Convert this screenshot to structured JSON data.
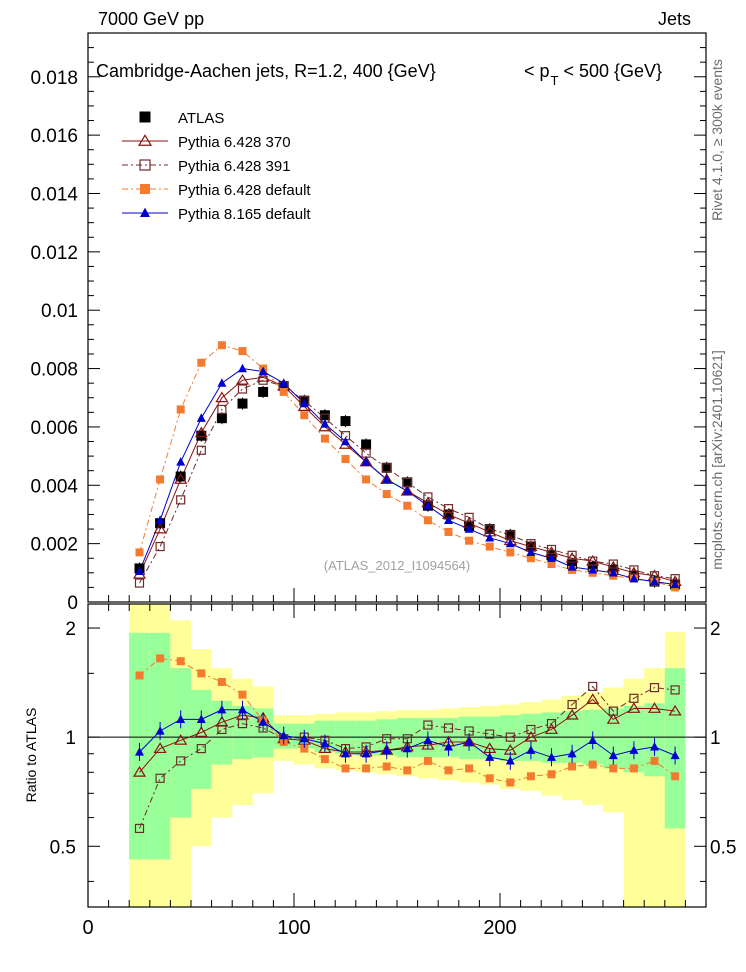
{
  "header": {
    "left": "7000 GeV pp",
    "right": "Jets"
  },
  "side_labels": {
    "rivet": "Rivet 4.1.0, ≥ 300k events",
    "mcplots": "mcplots.cern.ch [arXiv:2401.10621]"
  },
  "chart_data": {
    "type": "line",
    "title": "Cambridge-Aachen jets, R=1.2, 400 {GeV}    < p_T < 500 {GeV}",
    "title_main": "Cambridge-Aachen jets, R=1.2, 400 {GeV}",
    "title_cut_prefix": "< p",
    "title_cut_sub": "T",
    "title_cut_suffix": "< 500 {GeV}",
    "watermark": "(ATLAS_2012_I1094564)",
    "xlabel": "",
    "ylabel": "",
    "xlim": [
      0,
      300
    ],
    "ylim": [
      0,
      0.0195
    ],
    "x_ticks": [
      "0",
      "100",
      "200"
    ],
    "y_ticks": [
      "0",
      "0.002",
      "0.004",
      "0.006",
      "0.008",
      "0.01",
      "0.012",
      "0.014",
      "0.016",
      "0.018"
    ],
    "x": [
      25,
      35,
      45,
      55,
      65,
      75,
      85,
      95,
      105,
      115,
      125,
      135,
      145,
      155,
      165,
      175,
      185,
      195,
      205,
      215,
      225,
      235,
      245,
      255,
      265,
      275,
      285
    ],
    "series": [
      {
        "name": "ATLAS",
        "color": "#000000",
        "marker": "square-filled",
        "values": [
          0.00115,
          0.0027,
          0.0043,
          0.0057,
          0.0063,
          0.0068,
          0.0072,
          0.0074,
          0.0069,
          0.0064,
          0.0062,
          0.0054,
          0.0046,
          0.0041,
          0.0033,
          0.003,
          0.0026,
          0.0025,
          0.0023,
          0.0019,
          0.0016,
          0.0013,
          0.0012,
          0.0011,
          0.0009,
          0.0007,
          0.0006
        ]
      },
      {
        "name": "Pythia 6.428 370",
        "color": "#8b1010",
        "marker": "triangle-open",
        "dash": "",
        "values": [
          0.00095,
          0.0025,
          0.0042,
          0.0058,
          0.007,
          0.0076,
          0.0077,
          0.0074,
          0.0067,
          0.006,
          0.0054,
          0.0048,
          0.0042,
          0.0038,
          0.0034,
          0.003,
          0.0027,
          0.0024,
          0.0021,
          0.0019,
          0.0017,
          0.0015,
          0.0014,
          0.0012,
          0.001,
          0.0009,
          0.0007
        ]
      },
      {
        "name": "Pythia 6.428 391",
        "color": "#6e2a2a",
        "marker": "square-open",
        "dash": "6 3 2 3",
        "values": [
          0.00065,
          0.0019,
          0.0035,
          0.0052,
          0.0066,
          0.0073,
          0.0076,
          0.0074,
          0.0069,
          0.0063,
          0.0057,
          0.0051,
          0.0046,
          0.0041,
          0.0036,
          0.0032,
          0.0029,
          0.0025,
          0.0023,
          0.002,
          0.0018,
          0.0016,
          0.0014,
          0.0013,
          0.0011,
          0.0009,
          0.0008
        ]
      },
      {
        "name": "Pythia 6.428 default",
        "color": "#f47a30",
        "marker": "square-filled",
        "dash": "6 3 2 3",
        "values": [
          0.0017,
          0.0042,
          0.0066,
          0.0082,
          0.0088,
          0.0086,
          0.008,
          0.0072,
          0.0064,
          0.0056,
          0.0049,
          0.0042,
          0.0037,
          0.0033,
          0.0028,
          0.0024,
          0.0021,
          0.0019,
          0.0017,
          0.0015,
          0.0013,
          0.0011,
          0.001,
          0.0009,
          0.0008,
          0.0007,
          0.0005
        ]
      },
      {
        "name": "Pythia 8.165 default",
        "color": "#0000d0",
        "marker": "triangle-filled",
        "dash": "",
        "values": [
          0.00105,
          0.0028,
          0.0048,
          0.0063,
          0.0075,
          0.008,
          0.0079,
          0.0075,
          0.0068,
          0.0061,
          0.0055,
          0.0048,
          0.0042,
          0.0038,
          0.0033,
          0.0028,
          0.0025,
          0.0022,
          0.002,
          0.0017,
          0.0015,
          0.0012,
          0.0011,
          0.001,
          0.0008,
          0.0007,
          0.0006
        ]
      }
    ],
    "ratio": {
      "ylabel": "Ratio to ATLAS",
      "ylim": [
        0.34,
        2.33
      ],
      "y_ticks": [
        "0.5",
        "1",
        "2"
      ],
      "y_tick_values": [
        0.5,
        1,
        2
      ],
      "band_green_lo": [
        0.46,
        0.46,
        0.6,
        0.72,
        0.84,
        0.87,
        0.88,
        0.93,
        0.93,
        0.91,
        0.9,
        0.89,
        0.89,
        0.88,
        0.88,
        0.88,
        0.87,
        0.87,
        0.86,
        0.86,
        0.85,
        0.85,
        0.84,
        0.82,
        0.8,
        0.78,
        0.56
      ],
      "band_green_hi": [
        1.94,
        1.94,
        1.55,
        1.35,
        1.26,
        1.22,
        1.2,
        1.09,
        1.09,
        1.11,
        1.11,
        1.11,
        1.12,
        1.13,
        1.13,
        1.13,
        1.14,
        1.14,
        1.15,
        1.16,
        1.17,
        1.18,
        1.19,
        1.2,
        1.22,
        1.24,
        1.55
      ],
      "band_yellow_lo": [
        0.3,
        0.3,
        0.3,
        0.5,
        0.6,
        0.65,
        0.7,
        0.86,
        0.84,
        0.82,
        0.81,
        0.8,
        0.79,
        0.78,
        0.77,
        0.76,
        0.75,
        0.74,
        0.72,
        0.71,
        0.69,
        0.67,
        0.65,
        0.62,
        0.3,
        0.3,
        0.3
      ],
      "band_yellow_hi": [
        2.4,
        2.4,
        2.1,
        1.75,
        1.55,
        1.45,
        1.38,
        1.15,
        1.15,
        1.16,
        1.17,
        1.17,
        1.18,
        1.19,
        1.19,
        1.2,
        1.21,
        1.22,
        1.23,
        1.25,
        1.27,
        1.3,
        1.33,
        1.37,
        1.45,
        1.55,
        1.95
      ],
      "series": [
        {
          "name": "Pythia 6.428 370",
          "color": "#8b1010",
          "marker": "triangle-open",
          "dash": "",
          "values": [
            0.8,
            0.93,
            0.98,
            1.03,
            1.1,
            1.15,
            1.13,
            0.99,
            0.98,
            0.93,
            0.91,
            0.91,
            0.92,
            0.94,
            0.95,
            0.97,
            0.97,
            0.93,
            0.92,
            1.0,
            1.05,
            1.15,
            1.27,
            1.12,
            1.2,
            1.2,
            1.18
          ]
        },
        {
          "name": "Pythia 6.428 391",
          "color": "#6e2a2a",
          "marker": "square-open",
          "dash": "6 3 2 3",
          "values": [
            0.56,
            0.77,
            0.86,
            0.93,
            1.05,
            1.09,
            1.06,
            0.99,
            1.0,
            0.98,
            0.93,
            0.94,
            0.99,
            0.99,
            1.08,
            1.06,
            1.04,
            1.02,
            1.0,
            1.05,
            1.09,
            1.23,
            1.38,
            1.18,
            1.28,
            1.37,
            1.35
          ]
        },
        {
          "name": "Pythia 6.428 default",
          "color": "#f47a30",
          "marker": "square-filled",
          "dash": "6 3 2 3",
          "values": [
            1.48,
            1.65,
            1.62,
            1.5,
            1.42,
            1.31,
            1.11,
            0.97,
            0.93,
            0.87,
            0.82,
            0.82,
            0.83,
            0.81,
            0.86,
            0.81,
            0.82,
            0.77,
            0.75,
            0.78,
            0.79,
            0.83,
            0.84,
            0.82,
            0.82,
            0.86,
            0.78
          ]
        },
        {
          "name": "Pythia 8.165 default",
          "color": "#0000d0",
          "marker": "triangle-filled",
          "dash": "",
          "values": [
            0.91,
            1.04,
            1.12,
            1.12,
            1.19,
            1.19,
            1.1,
            1.01,
            0.99,
            0.96,
            0.9,
            0.9,
            0.92,
            0.93,
            0.98,
            0.94,
            0.97,
            0.88,
            0.86,
            0.92,
            0.88,
            0.9,
            0.98,
            0.89,
            0.92,
            0.94,
            0.89
          ]
        }
      ]
    }
  }
}
